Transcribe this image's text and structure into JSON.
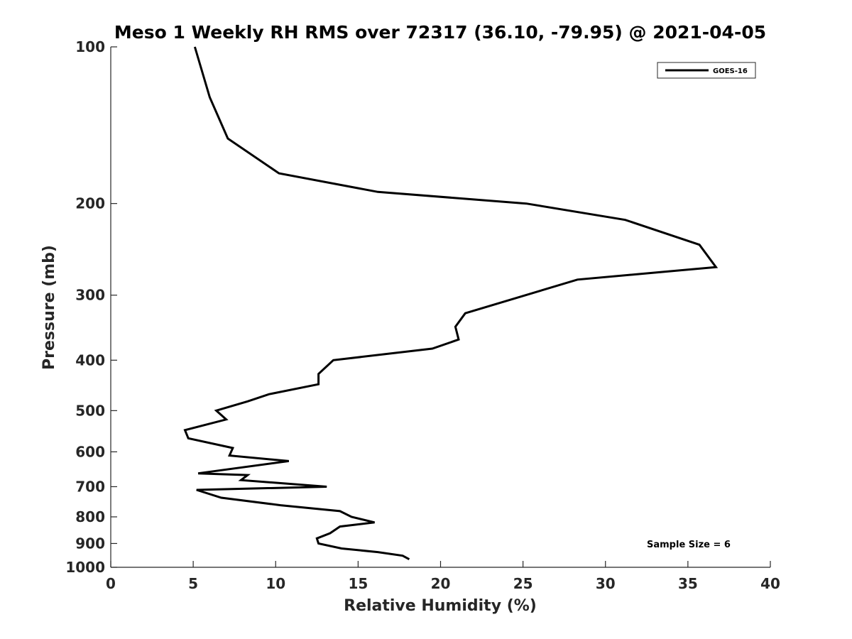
{
  "chart_data": {
    "type": "line",
    "title": "Meso 1 Weekly RH RMS over 72317 (36.10, -79.95) @ 2021-04-05",
    "xlabel": "Relative Humidity (%)",
    "ylabel": "Pressure (mb)",
    "xlim": [
      0,
      40
    ],
    "ylim": [
      1000,
      100
    ],
    "yscale": "log",
    "x_ticks": [
      0,
      5,
      10,
      15,
      20,
      25,
      30,
      35,
      40
    ],
    "y_ticks": [
      100,
      200,
      300,
      400,
      500,
      600,
      700,
      800,
      900,
      1000
    ],
    "grid": false,
    "legend_position": "top-right",
    "series": [
      {
        "name": "GOES-16",
        "color": "#000000",
        "points": [
          [
            5.1,
            100
          ],
          [
            6.0,
            125
          ],
          [
            7.1,
            150
          ],
          [
            10.2,
            175
          ],
          [
            16.2,
            190
          ],
          [
            25.2,
            200
          ],
          [
            31.2,
            215
          ],
          [
            35.7,
            240
          ],
          [
            36.7,
            265
          ],
          [
            28.3,
            280
          ],
          [
            21.5,
            325
          ],
          [
            20.9,
            345
          ],
          [
            21.1,
            365
          ],
          [
            19.5,
            380
          ],
          [
            13.5,
            400
          ],
          [
            12.6,
            425
          ],
          [
            12.6,
            445
          ],
          [
            9.6,
            465
          ],
          [
            8.3,
            480
          ],
          [
            6.4,
            500
          ],
          [
            7.0,
            520
          ],
          [
            4.5,
            545
          ],
          [
            4.7,
            565
          ],
          [
            7.4,
            590
          ],
          [
            7.2,
            610
          ],
          [
            10.8,
            625
          ],
          [
            5.3,
            660
          ],
          [
            8.3,
            665
          ],
          [
            7.9,
            680
          ],
          [
            13.1,
            700
          ],
          [
            5.2,
            710
          ],
          [
            6.7,
            735
          ],
          [
            10.3,
            760
          ],
          [
            13.9,
            780
          ],
          [
            14.6,
            800
          ],
          [
            16.0,
            820
          ],
          [
            13.9,
            835
          ],
          [
            13.3,
            860
          ],
          [
            12.5,
            880
          ],
          [
            12.6,
            900
          ],
          [
            14.0,
            920
          ],
          [
            16.2,
            935
          ],
          [
            17.7,
            950
          ],
          [
            18.1,
            965
          ]
        ]
      }
    ],
    "annotation": "Sample Size = 6"
  }
}
